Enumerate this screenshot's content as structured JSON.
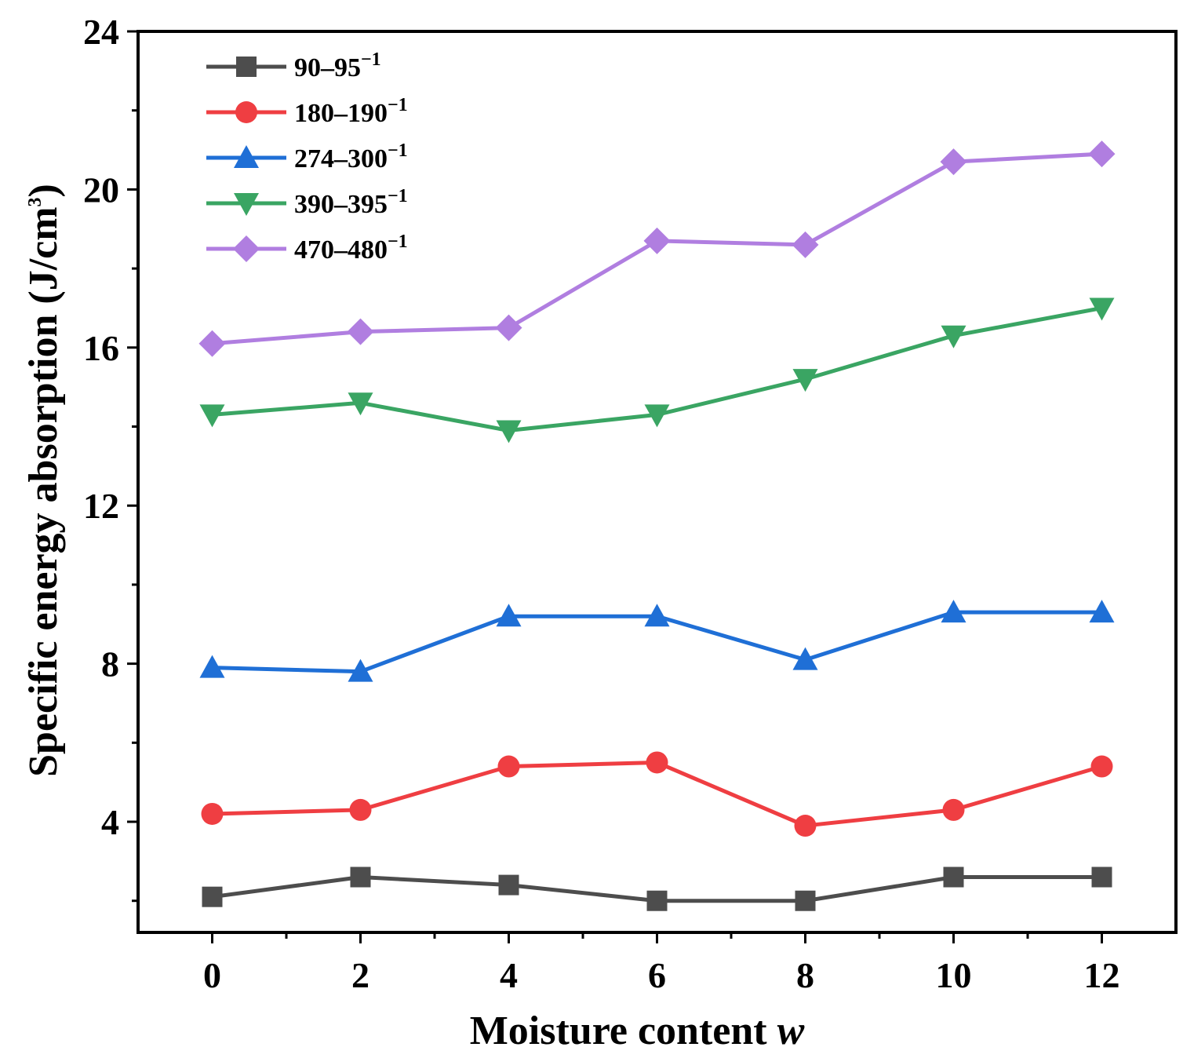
{
  "chart_data": {
    "type": "line",
    "xlabel": "Moisture content",
    "xlabel_var": "w",
    "ylabel": "Specific energy absorption (J/cm",
    "ylabel_sup": "3",
    "ylabel_close": ")",
    "xlim": [
      -1,
      13
    ],
    "ylim": [
      1.2,
      24
    ],
    "xticks": [
      0,
      2,
      4,
      6,
      8,
      10,
      12
    ],
    "yticks": [
      4,
      8,
      12,
      16,
      20,
      24
    ],
    "x": [
      0,
      2,
      4,
      6,
      8,
      10,
      12
    ],
    "series": [
      {
        "name": "90–95",
        "sup": "−1",
        "color": "#4d4d4d",
        "marker": "square",
        "values": [
          2.1,
          2.6,
          2.4,
          2.0,
          2.0,
          2.6,
          2.6
        ]
      },
      {
        "name": "180–190",
        "sup": "−1",
        "color": "#ef3e42",
        "marker": "circle",
        "values": [
          4.2,
          4.3,
          5.4,
          5.5,
          3.9,
          4.3,
          5.4
        ]
      },
      {
        "name": "274–300",
        "sup": "−1",
        "color": "#1f6fd6",
        "marker": "triangle-up",
        "values": [
          7.9,
          7.8,
          9.2,
          9.2,
          8.1,
          9.3,
          9.3
        ]
      },
      {
        "name": "390–395",
        "sup": "−1",
        "color": "#3aa563",
        "marker": "triangle-down",
        "values": [
          14.3,
          14.6,
          13.9,
          14.3,
          15.2,
          16.3,
          17.0
        ]
      },
      {
        "name": "470–480",
        "sup": "−1",
        "color": "#b07ee0",
        "marker": "diamond",
        "values": [
          16.1,
          16.4,
          16.5,
          18.7,
          18.6,
          20.7,
          20.9
        ]
      }
    ],
    "legend_position": "top-left"
  }
}
